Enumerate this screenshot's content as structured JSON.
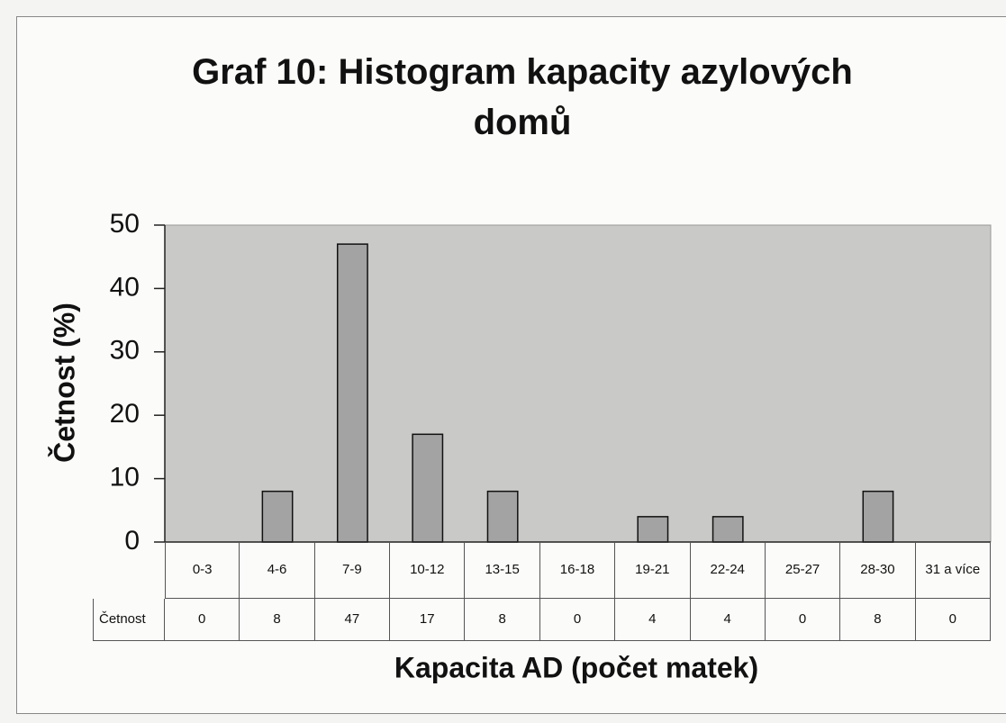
{
  "chart_data": {
    "type": "bar",
    "title": "Graf 10: Histogram kapacity azylových domů",
    "x_label": "Kapacita AD (počet matek)",
    "y_label": "Četnost (%)",
    "categories": [
      "0-3",
      "4-6",
      "7-9",
      "10-12",
      "13-15",
      "16-18",
      "19-21",
      "22-24",
      "25-27",
      "28-30",
      "31 a více"
    ],
    "series": [
      {
        "name": "Četnost",
        "color": "#a3a3a3",
        "values": [
          0,
          8,
          47,
          17,
          8,
          0,
          4,
          4,
          0,
          8,
          0
        ]
      }
    ],
    "ylim": [
      0,
      50
    ],
    "yticks": [
      0,
      10,
      20,
      30,
      40,
      50
    ],
    "grid": false,
    "data_table": true
  }
}
